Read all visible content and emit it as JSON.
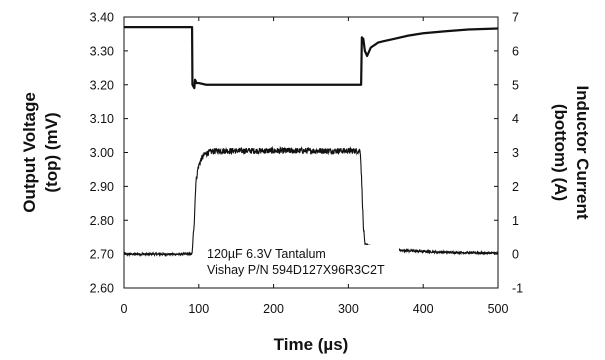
{
  "chart_data": {
    "type": "line",
    "title": "",
    "xlabel": "Time (µs)",
    "ylabel_left_lines": [
      "Output Voltage",
      "(top) (mV)"
    ],
    "ylabel_right_lines": [
      "Inductor Current",
      "(bottom) (A)"
    ],
    "xlim": [
      0,
      500
    ],
    "ylim_left": [
      2.6,
      3.4
    ],
    "ylim_right": [
      -1,
      7
    ],
    "x_ticks": [
      "0",
      "100",
      "200",
      "300",
      "400",
      "500"
    ],
    "y_left_ticks": [
      "2.60",
      "2.70",
      "2.80",
      "2.90",
      "3.00",
      "3.10",
      "3.20",
      "3.30",
      "3.40"
    ],
    "y_right_ticks": [
      "-1",
      "0",
      "1",
      "2",
      "3",
      "4",
      "5",
      "6",
      "7"
    ],
    "grid": false,
    "line_color": "#111111",
    "series": [
      {
        "axis": "left",
        "x": [
          0,
          91,
          91.5,
          94,
          95,
          97,
          100,
          110,
          150,
          200,
          250,
          300,
          317,
          318,
          320,
          322,
          325,
          330,
          340,
          360,
          380,
          400,
          430,
          460,
          500
        ],
        "y": [
          3.37,
          3.37,
          3.2,
          3.19,
          3.215,
          3.205,
          3.205,
          3.2,
          3.2,
          3.2,
          3.2,
          3.2,
          3.2,
          3.34,
          3.335,
          3.3,
          3.285,
          3.31,
          3.325,
          3.335,
          3.345,
          3.352,
          3.358,
          3.363,
          3.366
        ]
      },
      {
        "axis": "right",
        "x": [
          0,
          91,
          94,
          96,
          99,
          103,
          108,
          115,
          125,
          140,
          200,
          250,
          300,
          316,
          318,
          320,
          322,
          330,
          350,
          380,
          420,
          460,
          500
        ],
        "y": [
          0.0,
          0.0,
          1.0,
          2.1,
          2.55,
          2.8,
          2.95,
          3.02,
          3.05,
          3.05,
          3.05,
          3.05,
          3.05,
          3.05,
          2.0,
          0.8,
          0.3,
          0.22,
          0.15,
          0.1,
          0.06,
          0.04,
          0.03
        ],
        "noise": 0.09
      }
    ],
    "annotations": [
      "120µF 6.3V Tantalum",
      "Vishay P/N 594D127X96R3C2T"
    ]
  }
}
